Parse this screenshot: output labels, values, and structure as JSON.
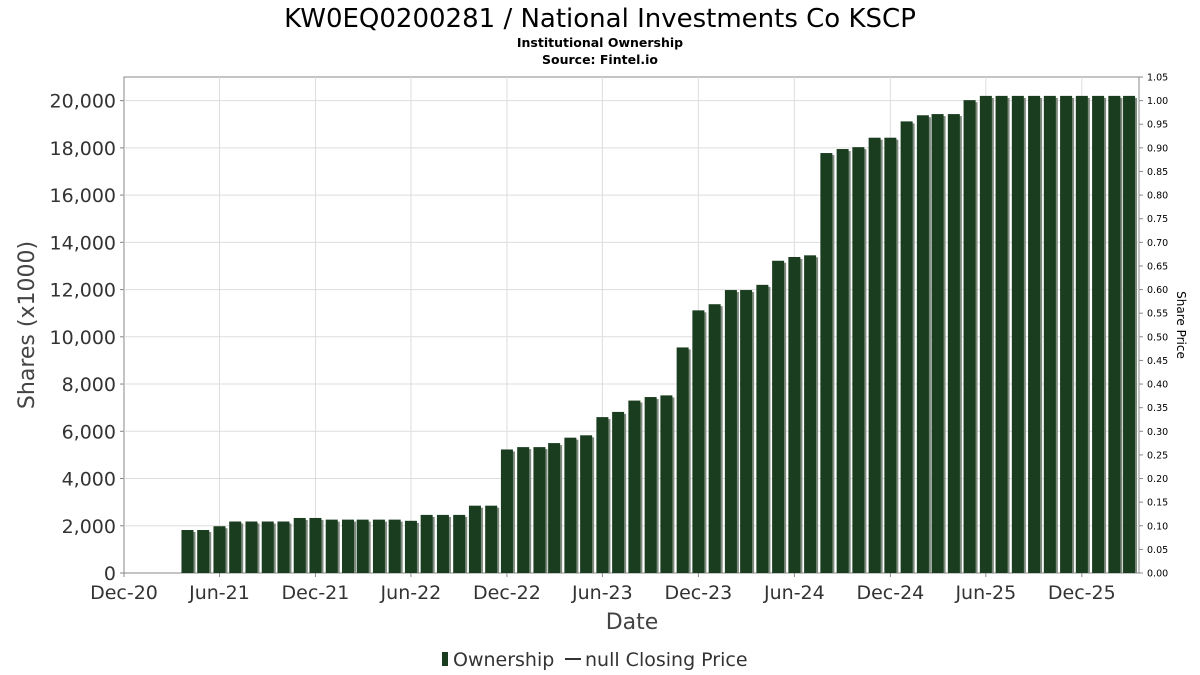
{
  "chart_data": {
    "type": "bar",
    "title": "KW0EQ0200281 / National Investments Co KSCP",
    "subtitle": "Institutional Ownership",
    "source": "Source: Fintel.io",
    "xlabel": "Date",
    "ylabel": "Shares (x1000)",
    "y2label": "Share Price",
    "ylim": [
      0,
      21000
    ],
    "y2lim": [
      0,
      1.05
    ],
    "xlim": [
      "2020-12-01",
      "2026-03-20"
    ],
    "yticks": [
      0,
      2000,
      4000,
      6000,
      8000,
      10000,
      12000,
      14000,
      16000,
      18000,
      20000
    ],
    "ytick_labels": [
      "0",
      "2,000",
      "4,000",
      "6,000",
      "8,000",
      "10,000",
      "12,000",
      "14,000",
      "16,000",
      "18,000",
      "20,000"
    ],
    "y2ticks": [
      "0.00",
      "0.05",
      "0.10",
      "0.15",
      "0.20",
      "0.25",
      "0.30",
      "0.35",
      "0.40",
      "0.45",
      "0.50",
      "0.55",
      "0.60",
      "0.65",
      "0.70",
      "0.75",
      "0.80",
      "0.85",
      "0.90",
      "0.95",
      "1.00",
      "1.05"
    ],
    "xticks": [
      {
        "date": "2020-12-01",
        "label": "Dec-20"
      },
      {
        "date": "2021-06-01",
        "label": "Jun-21"
      },
      {
        "date": "2021-12-01",
        "label": "Dec-21"
      },
      {
        "date": "2022-06-01",
        "label": "Jun-22"
      },
      {
        "date": "2022-12-01",
        "label": "Dec-22"
      },
      {
        "date": "2023-06-01",
        "label": "Jun-23"
      },
      {
        "date": "2023-12-01",
        "label": "Dec-23"
      },
      {
        "date": "2024-06-01",
        "label": "Jun-24"
      },
      {
        "date": "2024-12-01",
        "label": "Dec-24"
      },
      {
        "date": "2025-06-01",
        "label": "Jun-25"
      },
      {
        "date": "2025-12-01",
        "label": "Dec-25"
      }
    ],
    "grid": true,
    "legend_position": "bottom-center",
    "colors": {
      "bar": "#1a3d1f",
      "bar_shadow": "#7d8a7d",
      "grid": "#dddddd",
      "axis": "#888888"
    },
    "series": [
      {
        "name": "Ownership",
        "type": "bar",
        "points": [
          {
            "date": "2021-04-01",
            "value": 1820
          },
          {
            "date": "2021-05-01",
            "value": 1820
          },
          {
            "date": "2021-06-01",
            "value": 1980
          },
          {
            "date": "2021-07-01",
            "value": 2180
          },
          {
            "date": "2021-08-01",
            "value": 2180
          },
          {
            "date": "2021-09-01",
            "value": 2180
          },
          {
            "date": "2021-10-01",
            "value": 2180
          },
          {
            "date": "2021-11-01",
            "value": 2330
          },
          {
            "date": "2021-12-01",
            "value": 2330
          },
          {
            "date": "2022-01-01",
            "value": 2260
          },
          {
            "date": "2022-02-01",
            "value": 2260
          },
          {
            "date": "2022-03-01",
            "value": 2260
          },
          {
            "date": "2022-04-01",
            "value": 2260
          },
          {
            "date": "2022-05-01",
            "value": 2260
          },
          {
            "date": "2022-06-01",
            "value": 2210
          },
          {
            "date": "2022-07-01",
            "value": 2460
          },
          {
            "date": "2022-08-01",
            "value": 2460
          },
          {
            "date": "2022-09-01",
            "value": 2460
          },
          {
            "date": "2022-10-01",
            "value": 2850
          },
          {
            "date": "2022-11-01",
            "value": 2850
          },
          {
            "date": "2022-12-01",
            "value": 5230
          },
          {
            "date": "2023-01-01",
            "value": 5330
          },
          {
            "date": "2023-02-01",
            "value": 5330
          },
          {
            "date": "2023-03-01",
            "value": 5500
          },
          {
            "date": "2023-04-01",
            "value": 5730
          },
          {
            "date": "2023-05-01",
            "value": 5830
          },
          {
            "date": "2023-06-01",
            "value": 6600
          },
          {
            "date": "2023-07-01",
            "value": 6820
          },
          {
            "date": "2023-08-01",
            "value": 7300
          },
          {
            "date": "2023-09-01",
            "value": 7450
          },
          {
            "date": "2023-10-01",
            "value": 7520
          },
          {
            "date": "2023-11-01",
            "value": 9550
          },
          {
            "date": "2023-12-01",
            "value": 11120
          },
          {
            "date": "2024-01-01",
            "value": 11380
          },
          {
            "date": "2024-02-01",
            "value": 11980
          },
          {
            "date": "2024-03-01",
            "value": 11980
          },
          {
            "date": "2024-04-01",
            "value": 12200
          },
          {
            "date": "2024-05-01",
            "value": 13220
          },
          {
            "date": "2024-06-01",
            "value": 13380
          },
          {
            "date": "2024-07-01",
            "value": 13450
          },
          {
            "date": "2024-08-01",
            "value": 17780
          },
          {
            "date": "2024-09-01",
            "value": 17950
          },
          {
            "date": "2024-10-01",
            "value": 18030
          },
          {
            "date": "2024-11-01",
            "value": 18430
          },
          {
            "date": "2024-12-01",
            "value": 18430
          },
          {
            "date": "2025-01-01",
            "value": 19120
          },
          {
            "date": "2025-02-01",
            "value": 19380
          },
          {
            "date": "2025-03-01",
            "value": 19430
          },
          {
            "date": "2025-04-01",
            "value": 19430
          },
          {
            "date": "2025-05-01",
            "value": 20020
          },
          {
            "date": "2025-06-01",
            "value": 20200
          },
          {
            "date": "2025-07-01",
            "value": 20200
          },
          {
            "date": "2025-08-01",
            "value": 20200
          },
          {
            "date": "2025-09-01",
            "value": 20200
          },
          {
            "date": "2025-10-01",
            "value": 20200
          },
          {
            "date": "2025-11-01",
            "value": 20200
          },
          {
            "date": "2025-12-01",
            "value": 20200
          },
          {
            "date": "2026-01-01",
            "value": 20200
          },
          {
            "date": "2026-02-01",
            "value": 20200
          },
          {
            "date": "2026-03-01",
            "value": 20200
          }
        ]
      },
      {
        "name": "null Closing Price",
        "type": "line",
        "points": []
      }
    ]
  }
}
